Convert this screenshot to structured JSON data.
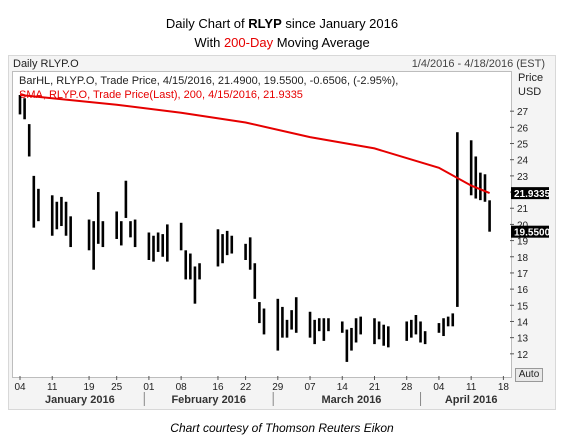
{
  "title": {
    "line1_prefix": "Daily Chart of ",
    "line1_symbol": "RLYP",
    "line1_suffix": " since January 2016",
    "line2_prefix": "With ",
    "line2_highlight": "200-Day",
    "line2_suffix": " Moving Average"
  },
  "panel": {
    "name": "Daily RLYP.O",
    "date_range": "1/4/2016 - 4/18/2016 (EST)",
    "legend_bar": "BarHL, RLYP.O, Trade Price, 4/15/2016, 21.4900, 19.5500, -0.6506, (-2.95%),",
    "legend_sma": "SMA, RLYP.O, Trade Price(Last),   200,  4/15/2016, 21.9335",
    "axis_title": "Price",
    "axis_unit": "USD",
    "auto_button": "Auto"
  },
  "caption": "Chart courtesy of Thomson Reuters Eikon",
  "colors": {
    "bars": "#000000",
    "sma": "#e60000",
    "title_highlight": "#e60000",
    "last_label_bg": "#000000"
  },
  "chart_data": {
    "type": "bar",
    "subtype": "high-low bars",
    "ylim": [
      11,
      28
    ],
    "y_ticks": [
      12,
      13,
      14,
      15,
      16,
      17,
      18,
      19,
      20,
      21,
      22,
      23,
      24,
      25,
      26,
      27
    ],
    "x_ticks": [
      "04",
      "11",
      "19",
      "25",
      "01",
      "08",
      "16",
      "22",
      "29",
      "07",
      "14",
      "21",
      "28",
      "04",
      "11",
      "18"
    ],
    "month_labels": [
      "January 2016",
      "February 2016",
      "March 2016",
      "April 2016"
    ],
    "bars": [
      {
        "date": "2016-01-04",
        "high": 28.0,
        "low": 26.8
      },
      {
        "date": "2016-01-05",
        "high": 27.8,
        "low": 26.5
      },
      {
        "date": "2016-01-06",
        "high": 26.2,
        "low": 24.2
      },
      {
        "date": "2016-01-07",
        "high": 23.0,
        "low": 19.8
      },
      {
        "date": "2016-01-08",
        "high": 22.2,
        "low": 20.2
      },
      {
        "date": "2016-01-11",
        "high": 21.8,
        "low": 19.3
      },
      {
        "date": "2016-01-12",
        "high": 21.4,
        "low": 19.7
      },
      {
        "date": "2016-01-13",
        "high": 21.7,
        "low": 19.9
      },
      {
        "date": "2016-01-14",
        "high": 21.4,
        "low": 19.3
      },
      {
        "date": "2016-01-15",
        "high": 20.5,
        "low": 18.6
      },
      {
        "date": "2016-01-19",
        "high": 20.3,
        "low": 18.4
      },
      {
        "date": "2016-01-20",
        "high": 20.2,
        "low": 17.2
      },
      {
        "date": "2016-01-21",
        "high": 22.0,
        "low": 18.8
      },
      {
        "date": "2016-01-22",
        "high": 20.2,
        "low": 18.6
      },
      {
        "date": "2016-01-25",
        "high": 20.8,
        "low": 19.1
      },
      {
        "date": "2016-01-26",
        "high": 20.2,
        "low": 18.7
      },
      {
        "date": "2016-01-27",
        "high": 22.7,
        "low": 20.4
      },
      {
        "date": "2016-01-28",
        "high": 20.2,
        "low": 19.2
      },
      {
        "date": "2016-01-29",
        "high": 20.3,
        "low": 18.6
      },
      {
        "date": "2016-02-01",
        "high": 19.5,
        "low": 17.8
      },
      {
        "date": "2016-02-02",
        "high": 19.3,
        "low": 17.7
      },
      {
        "date": "2016-02-03",
        "high": 19.5,
        "low": 18.3
      },
      {
        "date": "2016-02-04",
        "high": 19.4,
        "low": 18.0
      },
      {
        "date": "2016-02-05",
        "high": 20.0,
        "low": 17.7
      },
      {
        "date": "2016-02-08",
        "high": 20.1,
        "low": 18.4
      },
      {
        "date": "2016-02-09",
        "high": 18.4,
        "low": 16.6
      },
      {
        "date": "2016-02-10",
        "high": 18.2,
        "low": 16.6
      },
      {
        "date": "2016-02-11",
        "high": 17.4,
        "low": 15.1
      },
      {
        "date": "2016-02-12",
        "high": 17.6,
        "low": 16.6
      },
      {
        "date": "2016-02-16",
        "high": 19.7,
        "low": 17.4
      },
      {
        "date": "2016-02-17",
        "high": 19.4,
        "low": 17.6
      },
      {
        "date": "2016-02-18",
        "high": 19.6,
        "low": 18.1
      },
      {
        "date": "2016-02-19",
        "high": 19.3,
        "low": 18.2
      },
      {
        "date": "2016-02-22",
        "high": 18.8,
        "low": 17.8
      },
      {
        "date": "2016-02-23",
        "high": 19.2,
        "low": 17.2
      },
      {
        "date": "2016-02-24",
        "high": 17.6,
        "low": 15.4
      },
      {
        "date": "2016-02-25",
        "high": 15.2,
        "low": 13.9
      },
      {
        "date": "2016-02-26",
        "high": 14.8,
        "low": 13.2
      },
      {
        "date": "2016-02-29",
        "high": 15.4,
        "low": 12.2
      },
      {
        "date": "2016-03-01",
        "high": 14.9,
        "low": 13.0
      },
      {
        "date": "2016-03-02",
        "high": 14.1,
        "low": 13.0
      },
      {
        "date": "2016-03-03",
        "high": 14.7,
        "low": 13.5
      },
      {
        "date": "2016-03-04",
        "high": 15.5,
        "low": 13.3
      },
      {
        "date": "2016-03-07",
        "high": 14.6,
        "low": 13.0
      },
      {
        "date": "2016-03-08",
        "high": 14.1,
        "low": 12.6
      },
      {
        "date": "2016-03-09",
        "high": 14.2,
        "low": 13.4
      },
      {
        "date": "2016-03-10",
        "high": 14.2,
        "low": 12.8
      },
      {
        "date": "2016-03-11",
        "high": 14.2,
        "low": 13.4
      },
      {
        "date": "2016-03-14",
        "high": 14.0,
        "low": 13.3
      },
      {
        "date": "2016-03-15",
        "high": 13.5,
        "low": 11.5
      },
      {
        "date": "2016-03-16",
        "high": 13.6,
        "low": 12.2
      },
      {
        "date": "2016-03-17",
        "high": 14.2,
        "low": 12.7
      },
      {
        "date": "2016-03-18",
        "high": 14.3,
        "low": 13.2
      },
      {
        "date": "2016-03-21",
        "high": 14.2,
        "low": 12.6
      },
      {
        "date": "2016-03-22",
        "high": 14.0,
        "low": 12.9
      },
      {
        "date": "2016-03-23",
        "high": 13.8,
        "low": 12.5
      },
      {
        "date": "2016-03-24",
        "high": 13.7,
        "low": 12.4
      },
      {
        "date": "2016-03-28",
        "high": 14.0,
        "low": 12.8
      },
      {
        "date": "2016-03-29",
        "high": 14.1,
        "low": 13.0
      },
      {
        "date": "2016-03-30",
        "high": 14.4,
        "low": 13.2
      },
      {
        "date": "2016-03-31",
        "high": 14.0,
        "low": 12.7
      },
      {
        "date": "2016-04-01",
        "high": 13.4,
        "low": 12.6
      },
      {
        "date": "2016-04-04",
        "high": 13.9,
        "low": 13.3
      },
      {
        "date": "2016-04-05",
        "high": 14.2,
        "low": 13.1
      },
      {
        "date": "2016-04-06",
        "high": 14.3,
        "low": 13.7
      },
      {
        "date": "2016-04-07",
        "high": 14.5,
        "low": 13.7
      },
      {
        "date": "2016-04-08",
        "high": 25.7,
        "low": 14.9
      },
      {
        "date": "2016-04-11",
        "high": 25.2,
        "low": 21.8
      },
      {
        "date": "2016-04-12",
        "high": 24.2,
        "low": 21.6
      },
      {
        "date": "2016-04-13",
        "high": 23.2,
        "low": 21.5
      },
      {
        "date": "2016-04-14",
        "high": 23.1,
        "low": 21.4
      },
      {
        "date": "2016-04-15",
        "high": 21.49,
        "low": 19.55
      }
    ],
    "sma_200": [
      {
        "date": "2016-01-04",
        "value": 28.0
      },
      {
        "date": "2016-01-11",
        "value": 27.8
      },
      {
        "date": "2016-01-25",
        "value": 27.4
      },
      {
        "date": "2016-02-08",
        "value": 26.9
      },
      {
        "date": "2016-02-22",
        "value": 26.3
      },
      {
        "date": "2016-03-07",
        "value": 25.4
      },
      {
        "date": "2016-03-21",
        "value": 24.7
      },
      {
        "date": "2016-04-04",
        "value": 23.5
      },
      {
        "date": "2016-04-11",
        "value": 22.4
      },
      {
        "date": "2016-04-15",
        "value": 21.9335
      }
    ],
    "last_labels": [
      {
        "series": "SMA",
        "value": "21.9335"
      },
      {
        "series": "BarHL",
        "value": "19.5500"
      }
    ]
  }
}
